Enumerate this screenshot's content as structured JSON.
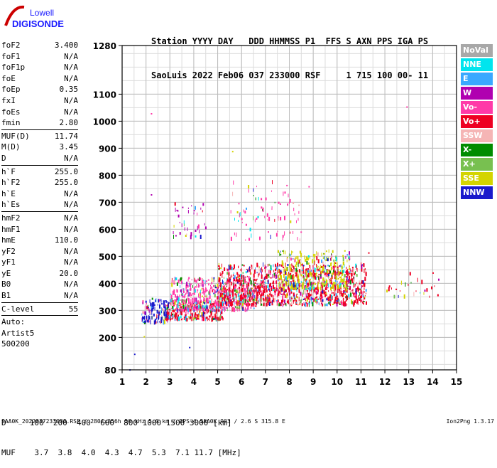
{
  "logo": {
    "line1": "Lowell",
    "line2": "DIGISONDE",
    "mark_color": "#cc0000",
    "text_color": "#1a1aff"
  },
  "header": {
    "line1": "Station YYYY DAY   DDD HHMMSS P1  FFS S AXN PPS IGA PS",
    "line2": "SaoLuis 2022 Feb06 037 233000 RSF     1 715 100 00- 11"
  },
  "params": [
    {
      "name": "foF2",
      "value": "3.400"
    },
    {
      "name": "foF1",
      "value": "N/A"
    },
    {
      "name": "foF1p",
      "value": "N/A"
    },
    {
      "name": "foE",
      "value": "N/A"
    },
    {
      "name": "foEp",
      "value": "0.35"
    },
    {
      "name": "fxI",
      "value": "N/A"
    },
    {
      "name": "foEs",
      "value": "N/A"
    },
    {
      "name": "fmin",
      "value": "2.80",
      "sep_after": true
    },
    {
      "name": "MUF(D)",
      "value": "11.74"
    },
    {
      "name": "M(D)",
      "value": "3.45"
    },
    {
      "name": "D",
      "value": "N/A",
      "sep_after": true
    },
    {
      "name": "h`F",
      "value": "255.0"
    },
    {
      "name": "h`F2",
      "value": "255.0"
    },
    {
      "name": "h`E",
      "value": "N/A"
    },
    {
      "name": "h`Es",
      "value": "N/A",
      "sep_after": true
    },
    {
      "name": "hmF2",
      "value": "N/A"
    },
    {
      "name": "hmF1",
      "value": "N/A"
    },
    {
      "name": "hmE",
      "value": "110.0"
    },
    {
      "name": "yF2",
      "value": "N/A"
    },
    {
      "name": "yF1",
      "value": "N/A"
    },
    {
      "name": "yE",
      "value": "20.0"
    },
    {
      "name": "B0",
      "value": "N/A"
    },
    {
      "name": "B1",
      "value": "N/A",
      "sep_after": true
    },
    {
      "name": "C-level",
      "value": "55",
      "sep_after": true
    }
  ],
  "auto": [
    "Auto:",
    "Artist5",
    "500200"
  ],
  "legend": [
    {
      "label": "NoVal",
      "color": "#a8a8a8"
    },
    {
      "label": "NNE",
      "color": "#00e5ee"
    },
    {
      "label": "E",
      "color": "#3aa8ff"
    },
    {
      "label": "W",
      "color": "#b000b0"
    },
    {
      "label": "Vo-",
      "color": "#ff3aa8"
    },
    {
      "label": "Vo+",
      "color": "#ee0022"
    },
    {
      "label": "SSW",
      "color": "#f5b5b5"
    },
    {
      "label": "X-",
      "color": "#008c00"
    },
    {
      "label": "X+",
      "color": "#78c050"
    },
    {
      "label": "SSE",
      "color": "#d4d400"
    },
    {
      "label": "NNW",
      "color": "#1a1acc"
    }
  ],
  "d_table": {
    "d_row": "D     100  200  400  600  800 1000 1500 3000 [km]",
    "muf_row": "MUF    3.7  3.8  4.0  4.3  4.7  5.3  7.1 11.7 [MHz]"
  },
  "footer": {
    "left": "SAA0K_2022037233000.RSF / 280fx256h 50 kHz 5.0 km / DPS-4 SAA0K 903 / 2.6 S 315.8 E",
    "right": "Ion2Png 1.3.17"
  },
  "chart_data": {
    "type": "scatter",
    "xlim": [
      1,
      15
    ],
    "ylim": [
      80,
      1280
    ],
    "x_ticks": [
      1,
      2,
      3,
      4,
      5,
      6,
      7,
      8,
      9,
      10,
      11,
      12,
      13,
      14,
      15
    ],
    "y_ticks": [
      80,
      200,
      300,
      400,
      500,
      600,
      700,
      800,
      900,
      1000,
      1100,
      1280
    ],
    "grid": true,
    "legend_placement": "right",
    "x_unit": "MHz",
    "y_unit": "km",
    "clusters": [
      {
        "x": [
          1.8,
          3.0
        ],
        "y": [
          255,
          345
        ],
        "density": 40,
        "dominant": "NNW"
      },
      {
        "x": [
          2.8,
          5.2
        ],
        "y": [
          265,
          330
        ],
        "density": 45,
        "dominant": "Vo+"
      },
      {
        "x": [
          3.0,
          6.5
        ],
        "y": [
          300,
          420
        ],
        "density": 55,
        "dominant": "Vo-"
      },
      {
        "x": [
          5.0,
          11.2
        ],
        "y": [
          320,
          470
        ],
        "density": 75,
        "dominant": "Vo+"
      },
      {
        "x": [
          7.5,
          10.5
        ],
        "y": [
          380,
          520
        ],
        "density": 40,
        "dominant": "SSE"
      },
      {
        "x": [
          3.1,
          4.5
        ],
        "y": [
          570,
          700
        ],
        "density": 10,
        "dominant": "W"
      },
      {
        "x": [
          5.5,
          8.5
        ],
        "y": [
          560,
          780
        ],
        "density": 10,
        "dominant": "Vo-"
      },
      {
        "x": [
          12.0,
          14.3
        ],
        "y": [
          350,
          440
        ],
        "density": 4,
        "dominant": "Vo+"
      }
    ],
    "points": [
      {
        "x": 1.3,
        "y": 82,
        "dir": "NNW"
      },
      {
        "x": 1.5,
        "y": 140,
        "dir": "NNW"
      },
      {
        "x": 1.9,
        "y": 205,
        "dir": "SSE"
      },
      {
        "x": 2.2,
        "y": 730,
        "dir": "W"
      },
      {
        "x": 3.8,
        "y": 165,
        "dir": "NNW"
      },
      {
        "x": 2.2,
        "y": 1030,
        "dir": "Vo-"
      },
      {
        "x": 12.9,
        "y": 1055,
        "dir": "Vo-"
      },
      {
        "x": 5.6,
        "y": 890,
        "dir": "SSE"
      },
      {
        "x": 8.8,
        "y": 760,
        "dir": "Vo-"
      },
      {
        "x": 11.3,
        "y": 515,
        "dir": "Vo+"
      }
    ]
  }
}
